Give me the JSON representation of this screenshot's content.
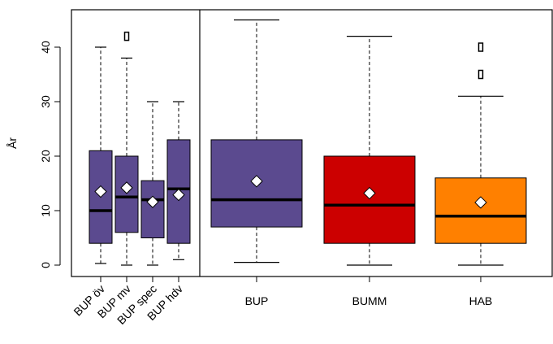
{
  "chart_data": {
    "type": "boxplot",
    "ylabel": "År",
    "xlabel": "",
    "title": "",
    "ylim": [
      -2,
      47
    ],
    "yticks": [
      0,
      10,
      20,
      30,
      40
    ],
    "panels": [
      {
        "categories": [
          "BUP öv",
          "BUP mv",
          "BUP spec",
          "BUP hdv"
        ],
        "tick_label_rotation": "45-degrees",
        "boxes": [
          {
            "label": "BUP öv",
            "whisker_low": 0.3,
            "q1": 4,
            "median": 10,
            "q3": 21,
            "whisker_high": 40,
            "mean": 13.5,
            "outliers": [],
            "fill": "#5b4a8f"
          },
          {
            "label": "BUP mv",
            "whisker_low": 0,
            "q1": 6,
            "median": 12.5,
            "q3": 20,
            "whisker_high": 38,
            "mean": 14.2,
            "outliers": [
              42
            ],
            "fill": "#5b4a8f"
          },
          {
            "label": "BUP spec",
            "whisker_low": 0,
            "q1": 5,
            "median": 12,
            "q3": 15.5,
            "whisker_high": 30,
            "mean": 11.6,
            "outliers": [],
            "fill": "#5b4a8f"
          },
          {
            "label": "BUP hdv",
            "whisker_low": 1,
            "q1": 4,
            "median": 14,
            "q3": 23,
            "whisker_high": 30,
            "mean": 12.9,
            "outliers": [],
            "fill": "#5b4a8f"
          }
        ]
      },
      {
        "categories": [
          "BUP",
          "BUMM",
          "HAB"
        ],
        "tick_label_rotation": "none",
        "boxes": [
          {
            "label": "BUP",
            "whisker_low": 0.5,
            "q1": 7,
            "median": 12,
            "q3": 23,
            "whisker_high": 45,
            "mean": 15.4,
            "outliers": [],
            "fill": "#5b4a8f"
          },
          {
            "label": "BUMM",
            "whisker_low": 0,
            "q1": 4,
            "median": 11,
            "q3": 20,
            "whisker_high": 42,
            "mean": 13.2,
            "outliers": [],
            "fill": "#cc0000"
          },
          {
            "label": "HAB",
            "whisker_low": 0,
            "q1": 4,
            "median": 9,
            "q3": 16,
            "whisker_high": 31,
            "mean": 11.5,
            "outliers": [
              35,
              40
            ],
            "fill": "#ff8000"
          }
        ]
      }
    ],
    "mean_marker": "white-diamond",
    "outlier_marker": "open-rectangle",
    "grid": false,
    "legend": "none"
  }
}
